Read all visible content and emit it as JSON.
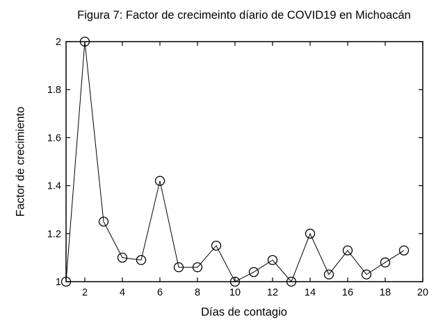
{
  "figure": {
    "background_color": "#ffffff",
    "foreground_color": "#000000"
  },
  "chart_data": {
    "type": "line",
    "title": "Figura 7: Factor de crecimeinto díario de COVID19 en Michoacán",
    "xlabel": "Días de contagio",
    "ylabel": "Factor de crecimiento",
    "x": [
      1,
      2,
      3,
      4,
      5,
      6,
      7,
      8,
      9,
      10,
      11,
      12,
      13,
      14,
      15,
      16,
      17,
      18,
      19
    ],
    "y": [
      1.0,
      2.0,
      1.25,
      1.1,
      1.09,
      1.42,
      1.06,
      1.06,
      1.15,
      1.0,
      1.04,
      1.09,
      1.0,
      1.2,
      1.03,
      1.13,
      1.03,
      1.08,
      1.13
    ],
    "xlim": [
      1,
      20
    ],
    "ylim": [
      1,
      2
    ],
    "xticks": [
      2,
      4,
      6,
      8,
      10,
      12,
      14,
      16,
      18,
      20
    ],
    "xtick_labels": [
      "2",
      "4",
      "6",
      "8",
      "10",
      "12",
      "14",
      "16",
      "18",
      "20"
    ],
    "yticks": [
      1,
      1.2,
      1.4,
      1.6,
      1.8,
      2
    ],
    "ytick_labels": [
      "1",
      "1.2",
      "1.4",
      "1.6",
      "1.8",
      "2"
    ],
    "grid": false,
    "legend_position": "none",
    "marker": "open-circle",
    "line_color": "#000000",
    "marker_edge_color": "#000000",
    "marker_fill": "none",
    "box": "on"
  }
}
